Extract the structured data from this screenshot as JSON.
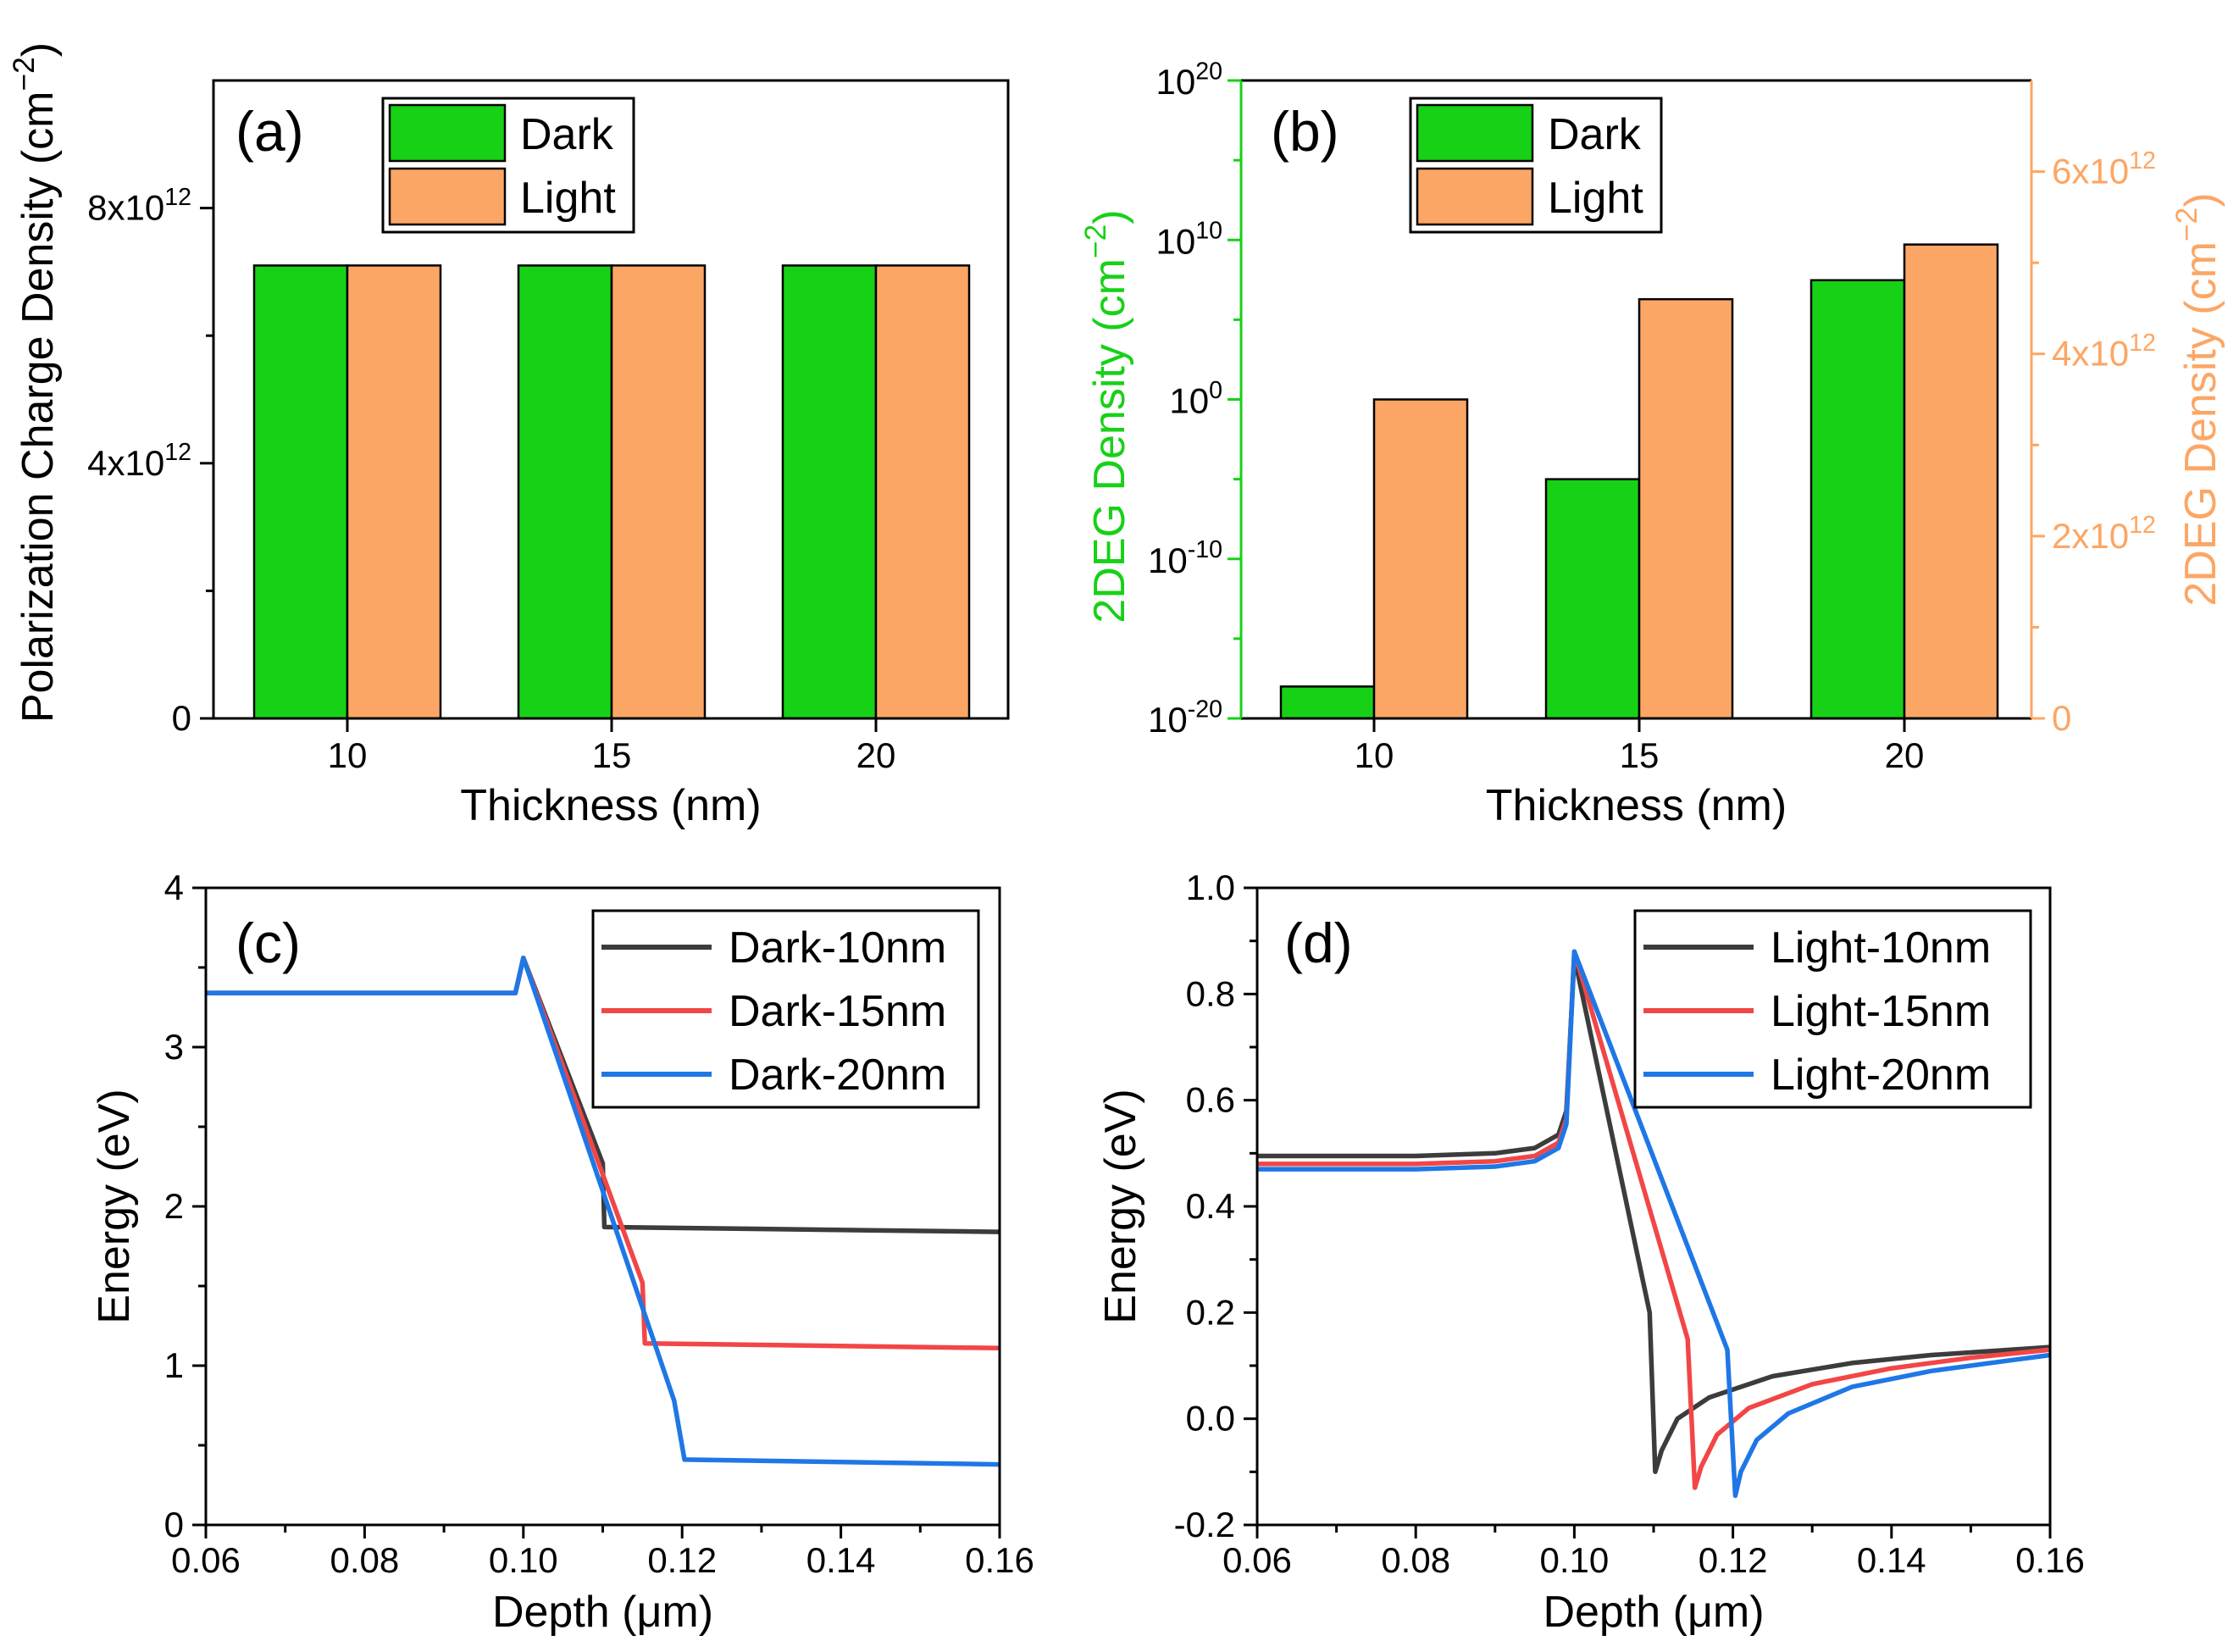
{
  "colors": {
    "dark_bar": "#17d117",
    "light_bar": "#fca665",
    "curve_10": "#3c3c3c",
    "curve_15": "#f24646",
    "curve_20": "#1f77e6",
    "axis_green": "#17d117",
    "axis_orange": "#fca665"
  },
  "chart_data": [
    {
      "panel": "a",
      "type": "bar",
      "label": "(a)",
      "categories": [
        "10",
        "15",
        "20"
      ],
      "series": [
        {
          "name": "Dark",
          "values": [
            7100000000000.0,
            7100000000000.0,
            7100000000000.0
          ]
        },
        {
          "name": "Light",
          "values": [
            7100000000000.0,
            7100000000000.0,
            7100000000000.0
          ]
        }
      ],
      "xlabel": "Thickness (nm)",
      "ylabel": "Polarization Charge Density (cm^-2)",
      "ylabel_base": "Polarization Charge Density (cm",
      "ylabel_sup": "−2",
      "ylabel_close": ")",
      "ylim": [
        0,
        10000000000000.0
      ],
      "yticks": [
        {
          "value": 0,
          "base": "0",
          "sup": ""
        },
        {
          "value": 4000000000000.0,
          "base": "4x10",
          "sup": "12"
        },
        {
          "value": 8000000000000.0,
          "base": "8x10",
          "sup": "12"
        }
      ],
      "legend": [
        {
          "name": "Dark"
        },
        {
          "name": "Light"
        }
      ],
      "legend_position": "top-center"
    },
    {
      "panel": "b",
      "type": "bar",
      "label": "(b)",
      "categories": [
        "10",
        "15",
        "20"
      ],
      "series": [
        {
          "name": "Dark",
          "axis": "left-log",
          "values": [
            1e-18,
            1e-05,
            30000000.0
          ]
        },
        {
          "name": "Light",
          "axis": "right-linear",
          "values": [
            3500000000000.0,
            4600000000000.0,
            5200000000000.0
          ]
        }
      ],
      "xlabel": "Thickness (nm)",
      "ylabel_left_base": "2DEG Density (cm",
      "ylabel_left_sup": "−2",
      "ylabel_right_base": "2DEG Density (cm",
      "ylabel_right_sup": "−2",
      "ylabel_close": ")",
      "ylim_left_log10": [
        -20,
        20
      ],
      "ylim_right": [
        0,
        7000000000000.0
      ],
      "yticks_left": [
        {
          "exp": -20,
          "base": "10",
          "sup": "-20"
        },
        {
          "exp": -10,
          "base": "10",
          "sup": "-10"
        },
        {
          "exp": 0,
          "base": "10",
          "sup": "0"
        },
        {
          "exp": 10,
          "base": "10",
          "sup": "10"
        },
        {
          "exp": 20,
          "base": "10",
          "sup": "20"
        }
      ],
      "yticks_right": [
        {
          "value": 0,
          "base": "0",
          "sup": ""
        },
        {
          "value": 2000000000000.0,
          "base": "2x10",
          "sup": "12"
        },
        {
          "value": 4000000000000.0,
          "base": "4x10",
          "sup": "12"
        },
        {
          "value": 6000000000000.0,
          "base": "6x10",
          "sup": "12"
        }
      ],
      "legend": [
        {
          "name": "Dark"
        },
        {
          "name": "Light"
        }
      ],
      "legend_position": "top-center"
    },
    {
      "panel": "c",
      "type": "line",
      "label": "(c)",
      "xlabel": "Depth (μm)",
      "ylabel": "Energy (eV)",
      "xlim": [
        0.06,
        0.16
      ],
      "ylim": [
        0,
        4
      ],
      "xticks": [
        "0.06",
        "0.08",
        "0.10",
        "0.12",
        "0.14",
        "0.16"
      ],
      "yticks": [
        "0",
        "1",
        "2",
        "3",
        "4"
      ],
      "legend_position": "top-right",
      "series": [
        {
          "name": "Dark-10nm",
          "x": [
            0.06,
            0.099,
            0.1,
            0.11,
            0.1102,
            0.16
          ],
          "y": [
            3.34,
            3.34,
            3.56,
            2.27,
            1.87,
            1.84
          ]
        },
        {
          "name": "Dark-15nm",
          "x": [
            0.06,
            0.099,
            0.1,
            0.115,
            0.1153,
            0.16
          ],
          "y": [
            3.34,
            3.34,
            3.56,
            1.52,
            1.14,
            1.11
          ]
        },
        {
          "name": "Dark-20nm",
          "x": [
            0.06,
            0.099,
            0.1,
            0.119,
            0.1203,
            0.16
          ],
          "y": [
            3.34,
            3.34,
            3.56,
            0.78,
            0.41,
            0.38
          ]
        }
      ]
    },
    {
      "panel": "d",
      "type": "line",
      "label": "(d)",
      "xlabel": "Depth (μm)",
      "ylabel": "Energy (eV)",
      "xlim": [
        0.06,
        0.16
      ],
      "ylim": [
        -0.2,
        1.0
      ],
      "xticks": [
        "0.06",
        "0.08",
        "0.10",
        "0.12",
        "0.14",
        "0.16"
      ],
      "yticks": [
        "-0.2",
        "0.0",
        "0.2",
        "0.4",
        "0.6",
        "0.8",
        "1.0"
      ],
      "legend_position": "top-right",
      "series": [
        {
          "name": "Light-10nm",
          "x": [
            0.06,
            0.08,
            0.09,
            0.095,
            0.098,
            0.099,
            0.1,
            0.1095,
            0.1102,
            0.111,
            0.113,
            0.117,
            0.125,
            0.135,
            0.145,
            0.16
          ],
          "y": [
            0.495,
            0.495,
            0.5,
            0.51,
            0.535,
            0.58,
            0.87,
            0.2,
            -0.1,
            -0.06,
            0.0,
            0.04,
            0.08,
            0.105,
            0.12,
            0.135
          ]
        },
        {
          "name": "Light-15nm",
          "x": [
            0.06,
            0.08,
            0.09,
            0.095,
            0.098,
            0.099,
            0.1,
            0.1143,
            0.1152,
            0.116,
            0.118,
            0.122,
            0.13,
            0.14,
            0.15,
            0.16
          ],
          "y": [
            0.48,
            0.48,
            0.485,
            0.495,
            0.52,
            0.565,
            0.88,
            0.15,
            -0.13,
            -0.09,
            -0.03,
            0.02,
            0.065,
            0.095,
            0.115,
            0.13
          ]
        },
        {
          "name": "Light-20nm",
          "x": [
            0.06,
            0.08,
            0.09,
            0.095,
            0.098,
            0.099,
            0.1,
            0.1193,
            0.1203,
            0.121,
            0.123,
            0.127,
            0.135,
            0.145,
            0.155,
            0.16
          ],
          "y": [
            0.47,
            0.47,
            0.475,
            0.485,
            0.51,
            0.555,
            0.88,
            0.13,
            -0.145,
            -0.1,
            -0.04,
            0.01,
            0.06,
            0.09,
            0.11,
            0.12
          ]
        }
      ]
    }
  ]
}
